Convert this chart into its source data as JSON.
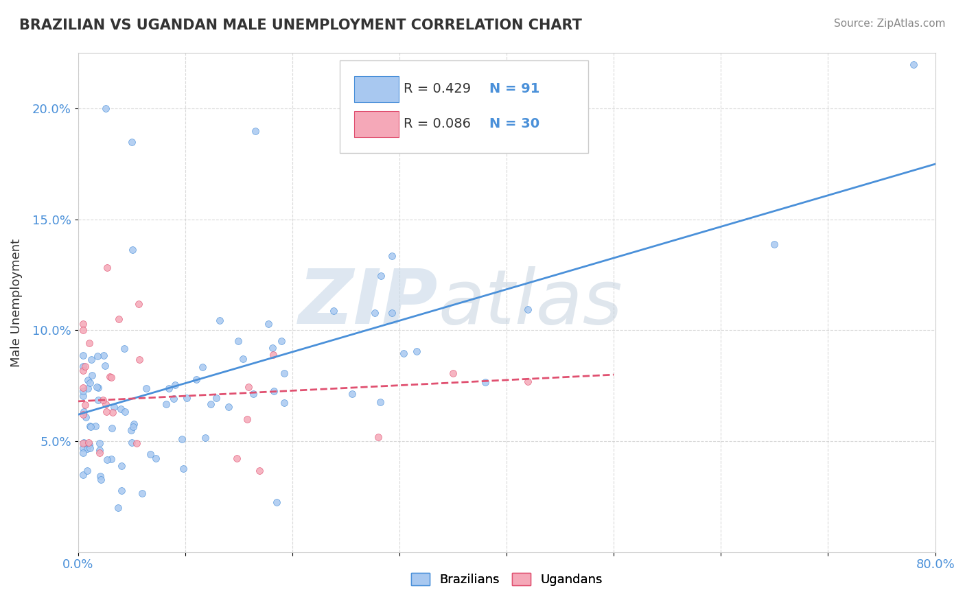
{
  "title": "BRAZILIAN VS UGANDAN MALE UNEMPLOYMENT CORRELATION CHART",
  "source_text": "Source: ZipAtlas.com",
  "xlabel": "",
  "ylabel": "Male Unemployment",
  "xlim": [
    0,
    0.8
  ],
  "ylim": [
    0,
    0.225
  ],
  "brazil_R": 0.429,
  "brazil_N": 91,
  "uganda_R": 0.086,
  "uganda_N": 30,
  "brazil_color": "#a8c8f0",
  "brazil_line_color": "#4a90d9",
  "uganda_color": "#f5a8b8",
  "uganda_line_color": "#e05070",
  "watermark_zip": "ZIP",
  "watermark_atlas": "atlas",
  "watermark_color_zip": "#c8d8e8",
  "watermark_color_atlas": "#b8c8d8",
  "background_color": "#ffffff",
  "grid_color": "#d0d0d0",
  "brazil_line_x": [
    0.0,
    0.8
  ],
  "brazil_line_y": [
    0.062,
    0.175
  ],
  "uganda_line_x": [
    0.0,
    0.5
  ],
  "uganda_line_y": [
    0.068,
    0.08
  ]
}
